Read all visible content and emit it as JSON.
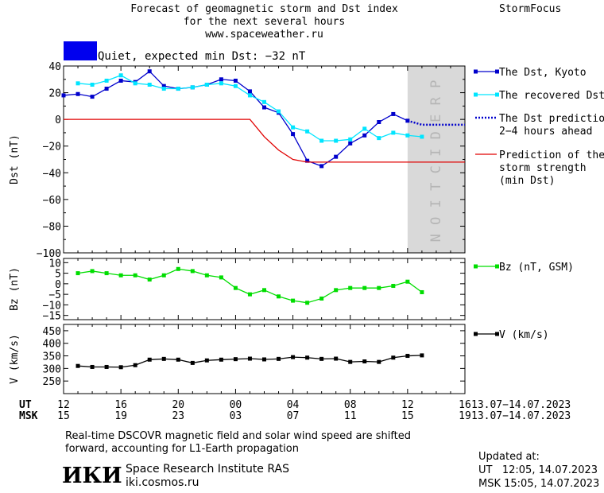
{
  "header": {
    "title_line1": "Forecast of geomagnetic storm and Dst index",
    "title_line2": "for the next several hours",
    "url": "www.spaceweather.ru",
    "brand": "StormFocus"
  },
  "status": {
    "text": "Quiet, expected min Dst: −32 nT",
    "color": "#0000ee"
  },
  "prediction_label": "PREDICTION",
  "footer": {
    "note_line1": "Real-time DSCOVR magnetic field and solar wind speed are shifted",
    "note_line2": "forward, accounting for L1-Earth propagation",
    "institute": "Space Research Institute RAS",
    "website": "iki.cosmos.ru",
    "logo_text": "ИКИ",
    "updated_label": "Updated at:",
    "updated_ut": "UT   12:05, 14.07.2023",
    "updated_msk": "MSK 15:05, 14.07.2023"
  },
  "time_axis": {
    "ut_label": "UT",
    "msk_label": "MSK",
    "ut_ticks": [
      "12",
      "16",
      "20",
      "00",
      "04",
      "08",
      "12",
      "16"
    ],
    "msk_ticks": [
      "15",
      "19",
      "23",
      "03",
      "07",
      "11",
      "15",
      "19"
    ],
    "date_range": "13.07−14.07.2023"
  },
  "chart_data": [
    {
      "type": "line",
      "ylabel": "Dst (nT)",
      "ylim": [
        -100,
        40
      ],
      "yticks": [
        "40",
        "20",
        "0",
        "−20",
        "−40",
        "−60",
        "−80",
        "−100"
      ],
      "xlim_hours": [
        0,
        28
      ],
      "prediction_region_hours": [
        24,
        28
      ],
      "series": [
        {
          "name": "The Dst, Kyoto",
          "color": "#0000cc",
          "x": [
            0,
            1,
            2,
            3,
            4,
            5,
            6,
            7,
            8,
            9,
            10,
            11,
            12,
            13,
            14,
            15,
            16,
            17,
            18,
            19,
            20,
            21,
            22,
            23,
            24
          ],
          "values": [
            18,
            19,
            17,
            23,
            29,
            28,
            36,
            25,
            23,
            24,
            26,
            30,
            29,
            21,
            9,
            5,
            -11,
            -31,
            -35,
            -28,
            -18,
            -12,
            -2,
            4,
            -1
          ]
        },
        {
          "name": "The recovered Dst",
          "color": "#00e5ff",
          "x": [
            1,
            2,
            3,
            4,
            5,
            6,
            7,
            8,
            9,
            10,
            11,
            12,
            13,
            14,
            15,
            16,
            17,
            18,
            19,
            20,
            21,
            22,
            23,
            24,
            25
          ],
          "values": [
            27,
            26,
            29,
            33,
            27,
            26,
            23,
            23,
            24,
            26,
            27,
            25,
            18,
            13,
            6,
            -6,
            -9,
            -16,
            -16,
            -15,
            -7,
            -14,
            -10,
            -12,
            -13
          ]
        },
        {
          "name": "The Dst prediction\n2−4 hours ahead",
          "color": "#0000cc",
          "style": "dotted",
          "x": [
            24,
            25,
            26,
            27,
            28
          ],
          "values": [
            -1,
            -4,
            -4,
            -4,
            -4
          ]
        },
        {
          "name": "Prediction of the\nstorm strength\n(min Dst)",
          "color": "#e00000",
          "x": [
            0,
            13,
            14,
            15,
            16,
            17,
            18,
            28
          ],
          "values": [
            0,
            0,
            -13,
            -23,
            -30,
            -32,
            -32,
            -32
          ]
        }
      ]
    },
    {
      "type": "line",
      "ylabel": "Bz (nT)",
      "ylim": [
        -17,
        12
      ],
      "yticks": [
        "10",
        "5",
        "0",
        "−5",
        "−10",
        "−15"
      ],
      "series": [
        {
          "name": "Bz (nT, GSM)",
          "color": "#00dd00",
          "x": [
            1,
            2,
            3,
            4,
            5,
            6,
            7,
            8,
            9,
            10,
            11,
            12,
            13,
            14,
            15,
            16,
            17,
            18,
            19,
            20,
            21,
            22,
            23,
            24,
            25
          ],
          "values": [
            5,
            6,
            5,
            4,
            4,
            2,
            4,
            7,
            6,
            4,
            3,
            -2,
            -5,
            -3,
            -6,
            -8,
            -9,
            -7,
            -3,
            -2,
            -2,
            -2,
            -1,
            1,
            -4
          ]
        }
      ]
    },
    {
      "type": "line",
      "ylabel": "V (km/s)",
      "ylim": [
        200,
        475
      ],
      "yticks": [
        "450",
        "400",
        "350",
        "300",
        "250"
      ],
      "series": [
        {
          "name": "V (km/s)",
          "color": "#000000",
          "x": [
            1,
            2,
            3,
            4,
            5,
            6,
            7,
            8,
            9,
            10,
            11,
            12,
            13,
            14,
            15,
            16,
            17,
            18,
            19,
            20,
            21,
            22,
            23,
            24,
            25
          ],
          "values": [
            310,
            306,
            306,
            305,
            313,
            335,
            338,
            335,
            322,
            332,
            335,
            337,
            339,
            336,
            338,
            345,
            343,
            338,
            339,
            326,
            328,
            326,
            343,
            350,
            352
          ]
        }
      ]
    }
  ]
}
